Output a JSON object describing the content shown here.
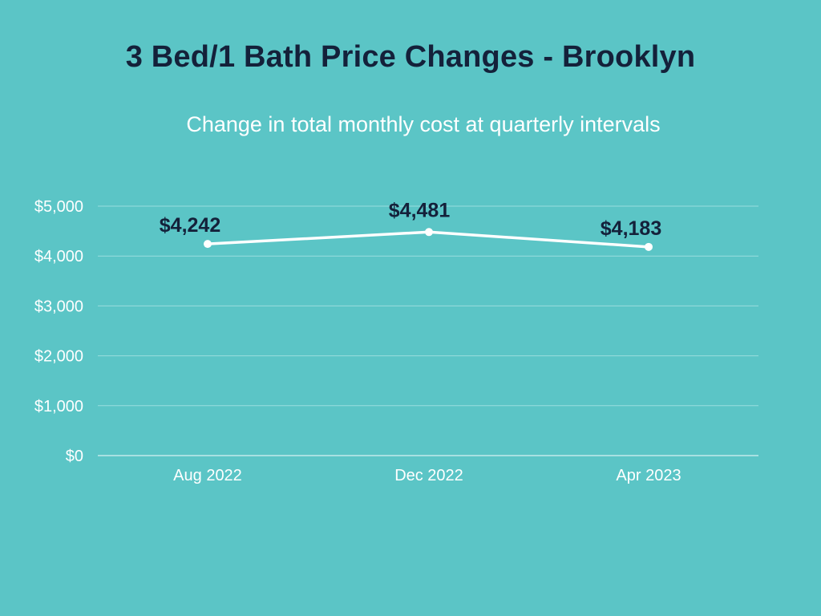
{
  "chart_data": {
    "type": "line",
    "title": "3 Bed/1 Bath Price Changes - Brooklyn",
    "subtitle": "Change in total monthly cost at quarterly intervals",
    "categories": [
      "Aug 2022",
      "Dec 2022",
      "Apr 2023"
    ],
    "series": [
      {
        "name": "Total monthly cost",
        "values": [
          4242,
          4481,
          4183
        ]
      }
    ],
    "data_labels": [
      "$4,242",
      "$4,481",
      "$4,183"
    ],
    "ylim": [
      0,
      5000
    ],
    "y_ticks": [
      0,
      1000,
      2000,
      3000,
      4000,
      5000
    ],
    "y_tick_labels": [
      "$0",
      "$1,000",
      "$2,000",
      "$3,000",
      "$4,000",
      "$5,000"
    ],
    "xlabel": "",
    "ylabel": "",
    "grid": true,
    "legend": "none"
  },
  "colors": {
    "background": "#5BC5C6",
    "line": "#FFFFFF",
    "title": "#14213A",
    "data_label": "#14213A",
    "grid": "#9ADDDD"
  }
}
